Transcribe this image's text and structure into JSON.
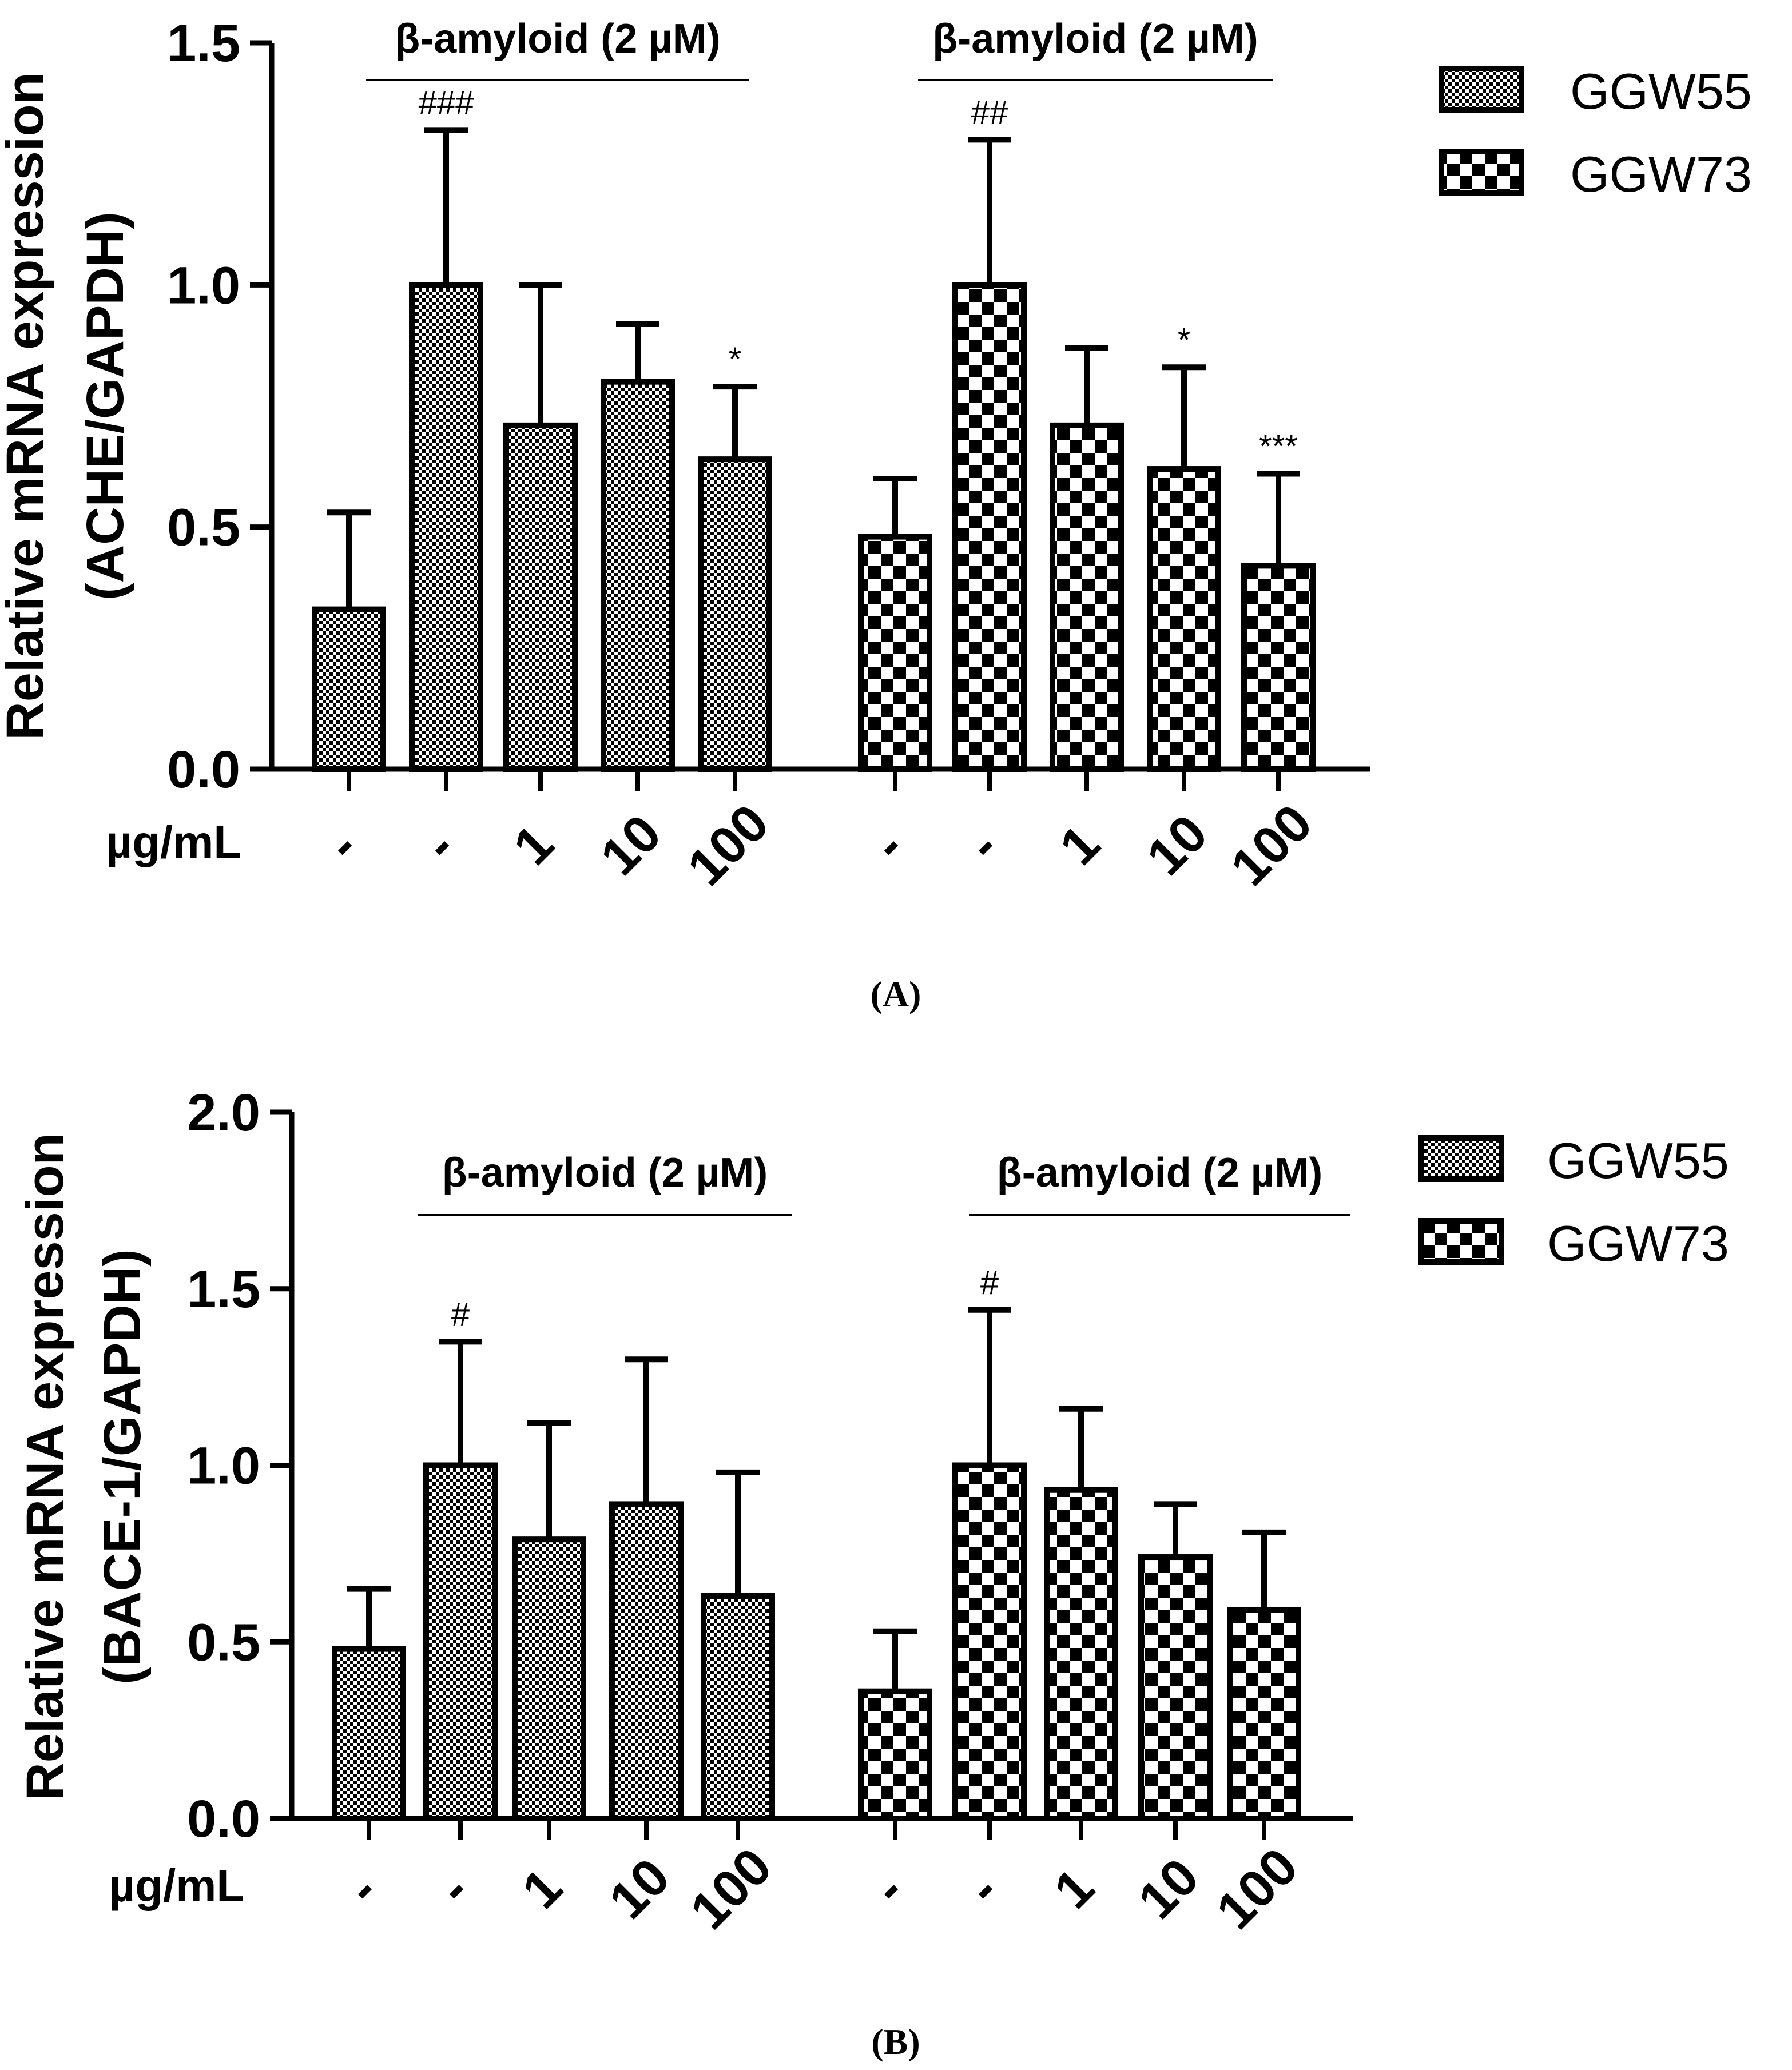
{
  "chart_data": [
    {
      "type": "bar",
      "panel_label": "(A)",
      "ylabel_line1": "Relative mRNA expression",
      "ylabel_line2": "(ACHE/GAPDH)",
      "ylim": [
        0,
        1.5
      ],
      "yticks": [
        "0.0",
        "0.5",
        "1.0",
        "1.5"
      ],
      "unit_label": "µg/mL",
      "bracket_label": "β-amyloid (2 µM)",
      "categories": [
        "-",
        "-",
        "1",
        "10",
        "100"
      ],
      "legend_position": "top-right",
      "series": [
        {
          "name": "GGW55",
          "pattern": "fine-check",
          "values": [
            0.33,
            1.0,
            0.71,
            0.8,
            0.64
          ],
          "errors": [
            0.2,
            0.32,
            0.29,
            0.12,
            0.15
          ],
          "significance": [
            "",
            "###",
            "",
            "",
            "*"
          ]
        },
        {
          "name": "GGW73",
          "pattern": "coarse-check",
          "values": [
            0.48,
            1.0,
            0.71,
            0.62,
            0.42
          ],
          "errors": [
            0.12,
            0.3,
            0.16,
            0.21,
            0.19
          ],
          "significance": [
            "",
            "##",
            "",
            "*",
            "***"
          ]
        }
      ]
    },
    {
      "type": "bar",
      "panel_label": "(B)",
      "ylabel_line1": "Relative mRNA expression",
      "ylabel_line2": "(BACE-1/GAPDH)",
      "ylim": [
        0,
        2.0
      ],
      "yticks": [
        "0.0",
        "0.5",
        "1.0",
        "1.5",
        "2.0"
      ],
      "unit_label": "µg/mL",
      "bracket_label": "β-amyloid (2 µM)",
      "categories": [
        "-",
        "-",
        "1",
        "10",
        "100"
      ],
      "legend_position": "top-right",
      "series": [
        {
          "name": "GGW55",
          "pattern": "fine-check",
          "values": [
            0.48,
            1.0,
            0.79,
            0.89,
            0.63
          ],
          "errors": [
            0.17,
            0.35,
            0.33,
            0.41,
            0.35
          ],
          "significance": [
            "",
            "#",
            "",
            "",
            ""
          ]
        },
        {
          "name": "GGW73",
          "pattern": "coarse-check",
          "values": [
            0.36,
            1.0,
            0.93,
            0.74,
            0.59
          ],
          "errors": [
            0.17,
            0.44,
            0.23,
            0.15,
            0.22
          ],
          "significance": [
            "",
            "#",
            "",
            "",
            ""
          ]
        }
      ]
    }
  ],
  "colors": {
    "ink": "#000000",
    "background": "#ffffff"
  }
}
